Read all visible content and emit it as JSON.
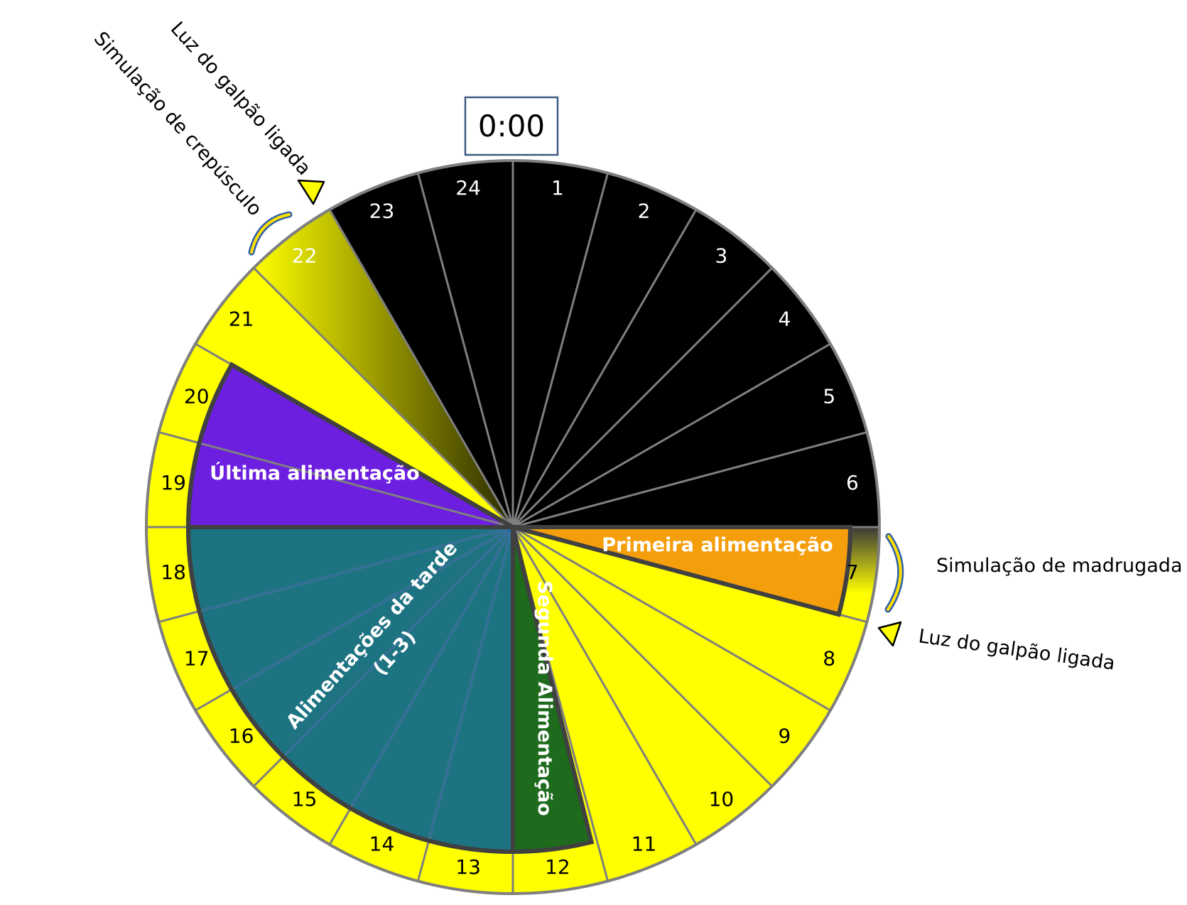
{
  "clock": {
    "time_label": "0:00",
    "hours": [
      "1",
      "2",
      "3",
      "4",
      "5",
      "6",
      "7",
      "8",
      "9",
      "10",
      "11",
      "12",
      "13",
      "14",
      "15",
      "16",
      "17",
      "18",
      "19",
      "20",
      "21",
      "22",
      "23",
      "24"
    ]
  },
  "periods": {
    "dark_hours": [
      23,
      24,
      1,
      2,
      3,
      4,
      5,
      6
    ],
    "light_hours": [
      7,
      8,
      9,
      10,
      11,
      12,
      13,
      14,
      15,
      16,
      17,
      18,
      19,
      20,
      21,
      22
    ],
    "dusk_simulation_hour": 22,
    "dawn_simulation_hour": 7
  },
  "feedings": {
    "first": "Primeira alimentação",
    "second": "Segunda Alimentação",
    "afternoon_line1": "Alimentações da tarde",
    "afternoon_line2": "(1-3)",
    "last": "Última alimentação"
  },
  "annotations": {
    "dusk_light_on": "Luz do galpão ligada",
    "dusk_simulation": "Simulação de crepúsculo",
    "dawn_simulation": "Simulação de madrugada",
    "dawn_light_on": "Luz do galpão ligada"
  },
  "colors": {
    "dark": "#000000",
    "light": "#ffff00",
    "first_feeding": "#f59e0b",
    "second_feeding": "#1e6b1e",
    "afternoon_feeding": "#1d7382",
    "last_feeding": "#6d1fe0",
    "divider": "#7f7f7f",
    "outline": "#404040",
    "time_box_border": "#3d5a80"
  }
}
